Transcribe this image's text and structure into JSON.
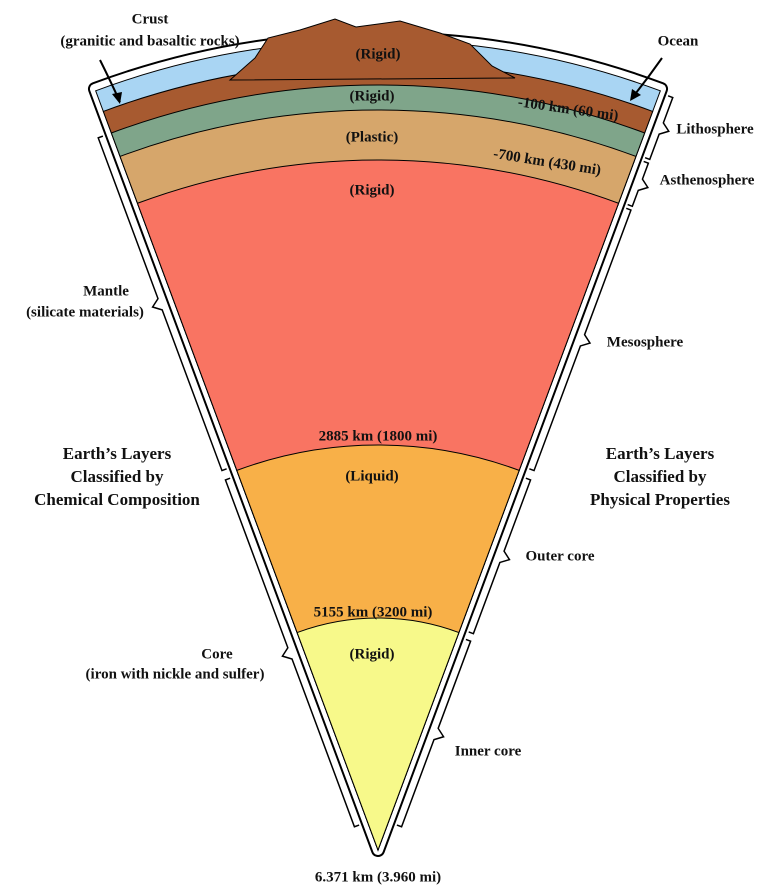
{
  "crust": {
    "title": "Crust",
    "subtitle": "(granitic and basaltic rocks)"
  },
  "ocean": "Ocean",
  "layer_states": [
    "(Rigid)",
    "(Rigid)",
    "(Plastic)",
    "(Rigid)",
    "(Liquid)",
    "(Rigid)"
  ],
  "boundaries": [
    "-100 km (60 mi)",
    "-700 km (430 mi)",
    "2885 km (1800 mi)",
    "5155 km (3200 mi)"
  ],
  "physical_layers": [
    "Lithosphere",
    "Asthenosphere",
    "Mesosphere",
    "Outer core",
    "Inner core"
  ],
  "mantle": {
    "title": "Mantle",
    "subtitle": "(silicate materials)"
  },
  "core": {
    "title": "Core",
    "subtitle": "(iron with nickle and sulfer)"
  },
  "chemical_heading": [
    "Earth’s Layers",
    "Classified by",
    "Chemical Composition"
  ],
  "physical_heading": [
    "Earth’s Layers",
    "Classified by",
    "Physical Properties"
  ],
  "center_depth": "6.371 km (3.960 mi)"
}
